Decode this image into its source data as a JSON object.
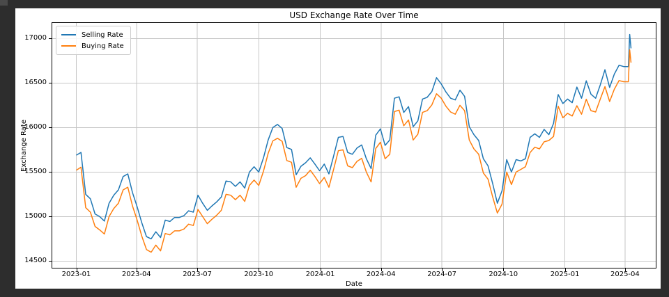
{
  "window": {
    "bg": "#2d2d2d",
    "artifact_color": "#4a4a4a",
    "figure_bg": "#ffffff"
  },
  "chart_data": {
    "type": "line",
    "title": "USD Exchange Rate Over Time",
    "xlabel": "Date",
    "ylabel": "Exchange Rate",
    "grid": true,
    "legend": {
      "position": "upper left",
      "entries": [
        "Selling Rate",
        "Buying Rate"
      ]
    },
    "ylim": [
      14425,
      17175
    ],
    "xlim": [
      "2022-11-26",
      "2025-05-17"
    ],
    "y_ticks": [
      14500,
      15000,
      15500,
      16000,
      16500,
      17000
    ],
    "x_ticks": [
      {
        "date": "2023-01-01",
        "label": "2023-01"
      },
      {
        "date": "2023-04-01",
        "label": "2023-04"
      },
      {
        "date": "2023-07-01",
        "label": "2023-07"
      },
      {
        "date": "2023-10-01",
        "label": "2023-10"
      },
      {
        "date": "2024-01-01",
        "label": "2024-01"
      },
      {
        "date": "2024-04-01",
        "label": "2024-04"
      },
      {
        "date": "2024-07-01",
        "label": "2024-07"
      },
      {
        "date": "2024-10-01",
        "label": "2024-10"
      },
      {
        "date": "2025-01-01",
        "label": "2025-01"
      },
      {
        "date": "2025-04-01",
        "label": "2025-04"
      }
    ],
    "colors": {
      "selling": "#1f77b4",
      "buying": "#ff7f0e",
      "grid": "#c6c6c6",
      "spine": "#000000",
      "text": "#000000"
    },
    "x": [
      "2023-01-01",
      "2023-01-08",
      "2023-01-15",
      "2023-01-22",
      "2023-01-29",
      "2023-02-05",
      "2023-02-12",
      "2023-02-19",
      "2023-02-26",
      "2023-03-05",
      "2023-03-12",
      "2023-03-19",
      "2023-03-26",
      "2023-04-02",
      "2023-04-09",
      "2023-04-16",
      "2023-04-23",
      "2023-04-30",
      "2023-05-07",
      "2023-05-14",
      "2023-05-21",
      "2023-05-28",
      "2023-06-04",
      "2023-06-11",
      "2023-06-18",
      "2023-06-25",
      "2023-07-02",
      "2023-07-09",
      "2023-07-16",
      "2023-07-23",
      "2023-07-30",
      "2023-08-06",
      "2023-08-13",
      "2023-08-20",
      "2023-08-27",
      "2023-09-03",
      "2023-09-10",
      "2023-09-17",
      "2023-09-24",
      "2023-10-01",
      "2023-10-08",
      "2023-10-15",
      "2023-10-22",
      "2023-10-29",
      "2023-11-05",
      "2023-11-12",
      "2023-11-19",
      "2023-11-26",
      "2023-12-03",
      "2023-12-10",
      "2023-12-17",
      "2023-12-24",
      "2023-12-31",
      "2024-01-07",
      "2024-01-14",
      "2024-01-21",
      "2024-01-28",
      "2024-02-04",
      "2024-02-11",
      "2024-02-18",
      "2024-02-25",
      "2024-03-03",
      "2024-03-10",
      "2024-03-17",
      "2024-03-24",
      "2024-03-31",
      "2024-04-07",
      "2024-04-14",
      "2024-04-21",
      "2024-04-28",
      "2024-05-05",
      "2024-05-12",
      "2024-05-19",
      "2024-05-26",
      "2024-06-02",
      "2024-06-09",
      "2024-06-16",
      "2024-06-23",
      "2024-06-30",
      "2024-07-07",
      "2024-07-14",
      "2024-07-21",
      "2024-07-28",
      "2024-08-04",
      "2024-08-11",
      "2024-08-18",
      "2024-08-25",
      "2024-09-01",
      "2024-09-08",
      "2024-09-15",
      "2024-09-22",
      "2024-09-29",
      "2024-10-06",
      "2024-10-13",
      "2024-10-20",
      "2024-10-27",
      "2024-11-03",
      "2024-11-10",
      "2024-11-17",
      "2024-11-24",
      "2024-12-01",
      "2024-12-08",
      "2024-12-15",
      "2024-12-22",
      "2024-12-29",
      "2025-01-05",
      "2025-01-12",
      "2025-01-19",
      "2025-01-26",
      "2025-02-02",
      "2025-02-09",
      "2025-02-16",
      "2025-02-23",
      "2025-03-02",
      "2025-03-09",
      "2025-03-16",
      "2025-03-23",
      "2025-03-30",
      "2025-04-06",
      "2025-04-08",
      "2025-04-10"
    ],
    "series": [
      {
        "name": "Selling Rate",
        "color_key": "selling",
        "values": [
          15690,
          15720,
          15250,
          15200,
          15030,
          15000,
          14950,
          15150,
          15240,
          15300,
          15450,
          15480,
          15270,
          15110,
          14930,
          14775,
          14750,
          14830,
          14765,
          14960,
          14945,
          14990,
          14990,
          15010,
          15065,
          15050,
          15240,
          15150,
          15070,
          15120,
          15165,
          15220,
          15400,
          15390,
          15340,
          15390,
          15320,
          15500,
          15560,
          15500,
          15660,
          15860,
          16000,
          16035,
          15990,
          15775,
          15755,
          15470,
          15565,
          15605,
          15660,
          15590,
          15515,
          15590,
          15480,
          15680,
          15890,
          15900,
          15720,
          15700,
          15770,
          15805,
          15650,
          15540,
          15915,
          15985,
          15800,
          15860,
          16330,
          16345,
          16170,
          16235,
          16010,
          16075,
          16320,
          16340,
          16405,
          16560,
          16490,
          16400,
          16330,
          16310,
          16420,
          16350,
          16010,
          15920,
          15855,
          15650,
          15570,
          15370,
          15150,
          15290,
          15640,
          15500,
          15640,
          15625,
          15650,
          15890,
          15930,
          15890,
          15980,
          15920,
          16046,
          16370,
          16270,
          16320,
          16280,
          16455,
          16330,
          16525,
          16375,
          16330,
          16480,
          16650,
          16450,
          16600,
          16700,
          16685,
          16685,
          17045,
          16890
        ]
      },
      {
        "name": "Buying Rate",
        "color_key": "buying",
        "values": [
          15520,
          15555,
          15100,
          15050,
          14890,
          14850,
          14805,
          15000,
          15090,
          15150,
          15300,
          15330,
          15120,
          14960,
          14780,
          14630,
          14600,
          14680,
          14615,
          14810,
          14795,
          14840,
          14840,
          14860,
          14915,
          14900,
          15080,
          15000,
          14920,
          14970,
          15015,
          15070,
          15250,
          15240,
          15190,
          15240,
          15170,
          15350,
          15410,
          15350,
          15510,
          15710,
          15850,
          15880,
          15845,
          15630,
          15610,
          15330,
          15430,
          15460,
          15520,
          15450,
          15370,
          15440,
          15330,
          15530,
          15740,
          15750,
          15570,
          15550,
          15620,
          15655,
          15500,
          15390,
          15765,
          15835,
          15650,
          15700,
          16180,
          16195,
          16020,
          16085,
          15860,
          15925,
          16170,
          16190,
          16255,
          16380,
          16330,
          16240,
          16175,
          16150,
          16250,
          16190,
          15860,
          15760,
          15700,
          15490,
          15420,
          15220,
          15040,
          15140,
          15500,
          15360,
          15500,
          15530,
          15560,
          15720,
          15780,
          15760,
          15840,
          15855,
          15900,
          16240,
          16110,
          16160,
          16130,
          16245,
          16150,
          16318,
          16190,
          16175,
          16320,
          16460,
          16292,
          16430,
          16528,
          16515,
          16515,
          16872,
          16730
        ]
      }
    ]
  }
}
